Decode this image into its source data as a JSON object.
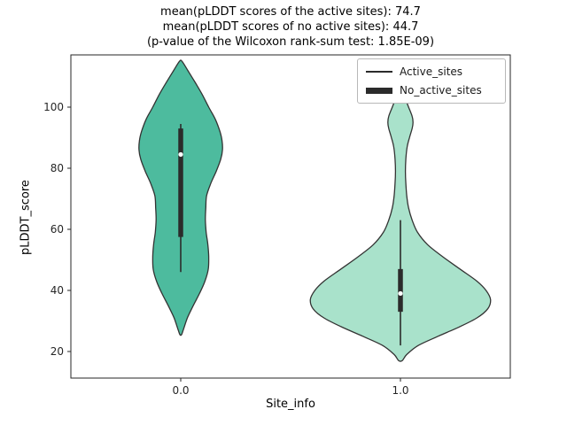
{
  "chart_data": {
    "type": "violin",
    "title_lines": [
      "mean(pLDDT scores of the active sites): 74.7",
      "mean(pLDDT scores of no active sites): 44.7",
      "(p-value of the Wilcoxon rank-sum test: 1.85E-09)"
    ],
    "xlabel": "Site_info",
    "ylabel": "pLDDT_score",
    "xlim": [
      -0.5,
      1.5
    ],
    "ylim": [
      11.3,
      117.1
    ],
    "x_ticks": [
      {
        "value": 0,
        "label": "0.0"
      },
      {
        "value": 1,
        "label": "1.0"
      }
    ],
    "y_ticks": [
      20,
      40,
      60,
      80,
      100
    ],
    "legend": [
      {
        "label": "Active_sites",
        "line_weight": "thin"
      },
      {
        "label": "No_active_sites",
        "line_weight": "thick"
      }
    ],
    "stats": {
      "mean_active_sites": 74.7,
      "mean_no_active_sites": 44.7,
      "wilcoxon_rank_sum_p_value": "1.85E-09"
    },
    "colors": {
      "active_fill": "#4dbb9e",
      "no_active_fill": "#a9e2cb",
      "edge": "#333333",
      "inner_box": "#2b2b2b"
    },
    "violins": [
      {
        "series": "Active_sites",
        "x": 0,
        "fill": "#4dbb9e",
        "max_halfwidth_x": 0.19,
        "profile": [
          [
            115,
            0.03
          ],
          [
            112,
            0.17
          ],
          [
            108,
            0.35
          ],
          [
            104,
            0.52
          ],
          [
            100,
            0.67
          ],
          [
            96,
            0.83
          ],
          [
            92,
            0.94
          ],
          [
            89,
            0.99
          ],
          [
            86,
            1.0
          ],
          [
            83,
            0.96
          ],
          [
            79,
            0.85
          ],
          [
            75,
            0.72
          ],
          [
            71,
            0.62
          ],
          [
            67,
            0.6
          ],
          [
            63,
            0.59
          ],
          [
            59,
            0.61
          ],
          [
            55,
            0.65
          ],
          [
            51,
            0.67
          ],
          [
            47,
            0.66
          ],
          [
            43,
            0.58
          ],
          [
            39,
            0.45
          ],
          [
            35,
            0.3
          ],
          [
            31,
            0.16
          ],
          [
            27,
            0.06
          ],
          [
            25.5,
            0.02
          ]
        ],
        "box": {
          "median": 84.5,
          "q1": 57.5,
          "q3": 93,
          "whisker_low": 46,
          "whisker_high": 94.5
        }
      },
      {
        "series": "No_active_sites",
        "x": 1,
        "fill": "#a9e2cb",
        "max_halfwidth_x": 0.41,
        "profile": [
          [
            105,
            0.02
          ],
          [
            103,
            0.05
          ],
          [
            100,
            0.09
          ],
          [
            97,
            0.13
          ],
          [
            95,
            0.14
          ],
          [
            93,
            0.13
          ],
          [
            90,
            0.1
          ],
          [
            87,
            0.075
          ],
          [
            83,
            0.06
          ],
          [
            79,
            0.055
          ],
          [
            75,
            0.06
          ],
          [
            71,
            0.07
          ],
          [
            67,
            0.09
          ],
          [
            63,
            0.13
          ],
          [
            59,
            0.19
          ],
          [
            55,
            0.3
          ],
          [
            51,
            0.47
          ],
          [
            47,
            0.66
          ],
          [
            43,
            0.85
          ],
          [
            40,
            0.95
          ],
          [
            37,
            1.0
          ],
          [
            34,
            0.97
          ],
          [
            31,
            0.85
          ],
          [
            28,
            0.65
          ],
          [
            25,
            0.42
          ],
          [
            22,
            0.2
          ],
          [
            19,
            0.07
          ],
          [
            17,
            0.02
          ]
        ],
        "box": {
          "median": 39,
          "q1": 33,
          "q3": 47,
          "whisker_low": 22,
          "whisker_high": 63
        }
      }
    ]
  }
}
